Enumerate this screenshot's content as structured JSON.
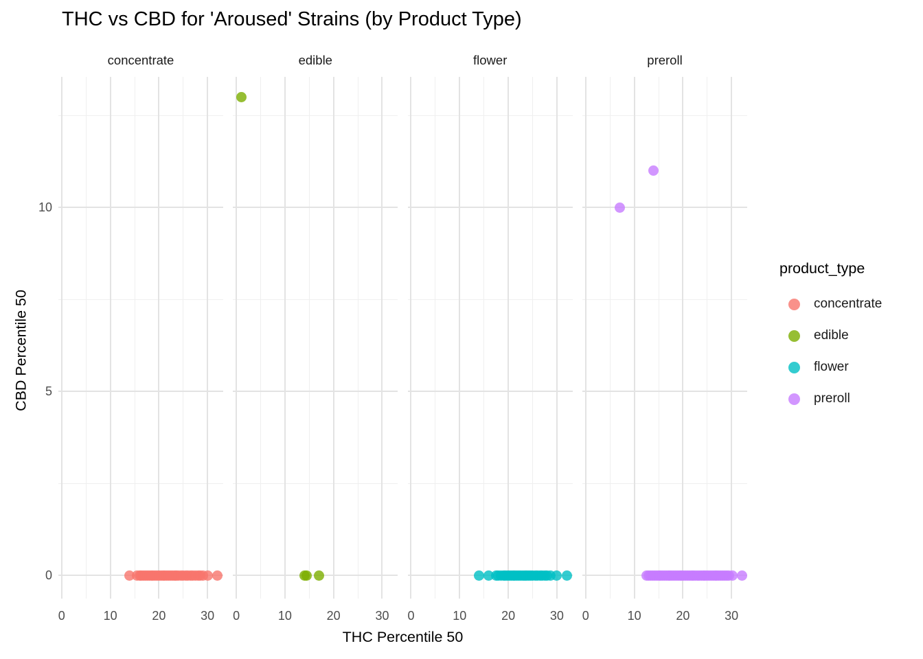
{
  "title": "THC vs CBD for 'Aroused' Strains (by Product Type)",
  "chart_data": {
    "type": "scatter",
    "title": "THC vs CBD for 'Aroused' Strains (by Product Type)",
    "xlabel": "THC Percentile 50",
    "ylabel": "CBD Percentile 50",
    "facet_variable": "product_type",
    "legend_position": "right",
    "grid": true,
    "point_alpha": 0.8,
    "x_ticks": [
      0,
      10,
      20,
      30
    ],
    "y_ticks": [
      0,
      5,
      10
    ],
    "x_minor_breaks": [
      5,
      15,
      25
    ],
    "y_minor_breaks": [
      2.5,
      7.5,
      12.5
    ],
    "xlim": [
      -0.7,
      33.2
    ],
    "ylim": [
      -0.63,
      13.54
    ],
    "legend": {
      "title": "product_type",
      "entries": [
        {
          "label": "concentrate",
          "color": "#F8766D"
        },
        {
          "label": "edible",
          "color": "#7CAE00"
        },
        {
          "label": "flower",
          "color": "#00BFC4"
        },
        {
          "label": "preroll",
          "color": "#C77CFF"
        }
      ]
    },
    "facets": [
      {
        "label": "concentrate",
        "color": "#F8766D",
        "points": [
          [
            14,
            0
          ],
          [
            15.5,
            0
          ],
          [
            16,
            0
          ],
          [
            16.4,
            0
          ],
          [
            16.8,
            0
          ],
          [
            17.2,
            0
          ],
          [
            17.6,
            0
          ],
          [
            18,
            0
          ],
          [
            18.4,
            0
          ],
          [
            18.8,
            0
          ],
          [
            19.2,
            0
          ],
          [
            19.6,
            0
          ],
          [
            20,
            0
          ],
          [
            20.4,
            0
          ],
          [
            20.8,
            0
          ],
          [
            21.2,
            0
          ],
          [
            21.6,
            0
          ],
          [
            22,
            0
          ],
          [
            22.4,
            0
          ],
          [
            22.8,
            0
          ],
          [
            23.2,
            0
          ],
          [
            23.6,
            0
          ],
          [
            24,
            0
          ],
          [
            24.5,
            0
          ],
          [
            25,
            0
          ],
          [
            25.5,
            0
          ],
          [
            26,
            0
          ],
          [
            26.5,
            0
          ],
          [
            27,
            0
          ],
          [
            27.5,
            0
          ],
          [
            28,
            0
          ],
          [
            28.5,
            0
          ],
          [
            29,
            0
          ],
          [
            30,
            0
          ],
          [
            32,
            0
          ]
        ]
      },
      {
        "label": "edible",
        "color": "#7CAE00",
        "points": [
          [
            1,
            13
          ],
          [
            14,
            0
          ],
          [
            14.4,
            0
          ],
          [
            17,
            0
          ]
        ]
      },
      {
        "label": "flower",
        "color": "#00BFC4",
        "points": [
          [
            14,
            0
          ],
          [
            16,
            0
          ],
          [
            17.5,
            0
          ],
          [
            18,
            0
          ],
          [
            18.5,
            0
          ],
          [
            19,
            0
          ],
          [
            19.4,
            0
          ],
          [
            19.8,
            0
          ],
          [
            20.2,
            0
          ],
          [
            20.6,
            0
          ],
          [
            21,
            0
          ],
          [
            21.4,
            0
          ],
          [
            21.8,
            0
          ],
          [
            22.2,
            0
          ],
          [
            22.6,
            0
          ],
          [
            23,
            0
          ],
          [
            23.4,
            0
          ],
          [
            23.8,
            0
          ],
          [
            24.2,
            0
          ],
          [
            24.6,
            0
          ],
          [
            25,
            0
          ],
          [
            25.5,
            0
          ],
          [
            26,
            0
          ],
          [
            26.5,
            0
          ],
          [
            27,
            0
          ],
          [
            27.5,
            0
          ],
          [
            28,
            0
          ],
          [
            28.7,
            0
          ],
          [
            29.9,
            0
          ],
          [
            32,
            0
          ]
        ]
      },
      {
        "label": "preroll",
        "color": "#C77CFF",
        "points": [
          [
            7,
            10
          ],
          [
            14,
            11
          ],
          [
            12.5,
            0
          ],
          [
            13,
            0
          ],
          [
            13.4,
            0
          ],
          [
            13.8,
            0
          ],
          [
            14.2,
            0
          ],
          [
            14.6,
            0
          ],
          [
            15,
            0
          ],
          [
            15.4,
            0
          ],
          [
            15.8,
            0
          ],
          [
            16.2,
            0
          ],
          [
            16.6,
            0
          ],
          [
            17,
            0
          ],
          [
            17.4,
            0
          ],
          [
            17.8,
            0
          ],
          [
            18.2,
            0
          ],
          [
            18.6,
            0
          ],
          [
            19,
            0
          ],
          [
            19.4,
            0
          ],
          [
            19.8,
            0
          ],
          [
            20.2,
            0
          ],
          [
            20.6,
            0
          ],
          [
            21,
            0
          ],
          [
            21.4,
            0
          ],
          [
            21.8,
            0
          ],
          [
            22.2,
            0
          ],
          [
            22.6,
            0
          ],
          [
            23,
            0
          ],
          [
            23.4,
            0
          ],
          [
            23.8,
            0
          ],
          [
            24.2,
            0
          ],
          [
            24.6,
            0
          ],
          [
            25,
            0
          ],
          [
            25.4,
            0
          ],
          [
            25.8,
            0
          ],
          [
            26.2,
            0
          ],
          [
            26.6,
            0
          ],
          [
            27,
            0
          ],
          [
            27.4,
            0
          ],
          [
            27.8,
            0
          ],
          [
            28.2,
            0
          ],
          [
            28.6,
            0
          ],
          [
            29,
            0
          ],
          [
            29.5,
            0
          ],
          [
            30.2,
            0
          ],
          [
            32.1,
            0
          ]
        ]
      }
    ]
  }
}
